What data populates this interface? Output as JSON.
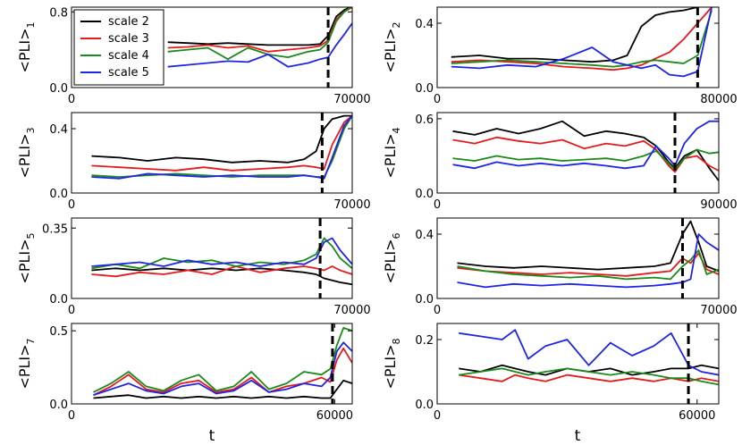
{
  "figure": {
    "xlabel": "t"
  },
  "legend": {
    "location": "top-left of panel 1",
    "entries": [
      {
        "label": "scale 2",
        "color": "#000000"
      },
      {
        "label": "scale 3",
        "color": "#e41a1c"
      },
      {
        "label": "scale 4",
        "color": "#1a8a1a"
      },
      {
        "label": "scale 5",
        "color": "#1f24e6"
      }
    ]
  },
  "chart_data": [
    {
      "type": "line",
      "ylabel": "<PLI>",
      "subscript": "1",
      "xlim": [
        0,
        70000
      ],
      "ylim": [
        0,
        0.85
      ],
      "xticks": [
        0,
        70000
      ],
      "xtick_labels": [
        "0",
        "70000"
      ],
      "yticks": [
        0.0,
        0.8
      ],
      "ytick_labels": [
        "0.0",
        "0.8"
      ],
      "event_x": 64000,
      "x": [
        24000,
        29000,
        34000,
        39000,
        44000,
        49000,
        54000,
        59000,
        62000,
        64000,
        66000,
        68000,
        70000
      ],
      "series": [
        {
          "name": "scale 2",
          "values": [
            0.48,
            0.47,
            0.46,
            0.47,
            0.46,
            0.45,
            0.45,
            0.45,
            0.46,
            0.55,
            0.75,
            0.82,
            0.86
          ]
        },
        {
          "name": "scale 3",
          "values": [
            0.42,
            0.43,
            0.45,
            0.42,
            0.44,
            0.38,
            0.4,
            0.42,
            0.44,
            0.5,
            0.72,
            0.8,
            0.85
          ]
        },
        {
          "name": "scale 4",
          "values": [
            0.38,
            0.4,
            0.42,
            0.3,
            0.42,
            0.35,
            0.32,
            0.38,
            0.4,
            0.48,
            0.7,
            0.8,
            0.86
          ]
        },
        {
          "name": "scale 5",
          "values": [
            0.22,
            0.24,
            0.26,
            0.28,
            0.27,
            0.35,
            0.22,
            0.26,
            0.3,
            0.32,
            0.45,
            0.56,
            0.68
          ]
        }
      ]
    },
    {
      "type": "line",
      "ylabel": "<PLI>",
      "subscript": "2",
      "xlim": [
        0,
        80000
      ],
      "ylim": [
        0,
        0.5
      ],
      "xticks": [
        0,
        80000
      ],
      "xtick_labels": [
        "0",
        "80000"
      ],
      "yticks": [
        0.0,
        0.4
      ],
      "ytick_labels": [
        "0.0",
        "0.4"
      ],
      "event_x": 74000,
      "x": [
        4000,
        12000,
        20000,
        28000,
        36000,
        44000,
        50000,
        54000,
        58000,
        62000,
        66000,
        70000,
        74000,
        78000
      ],
      "series": [
        {
          "name": "scale 2",
          "values": [
            0.19,
            0.2,
            0.18,
            0.18,
            0.17,
            0.16,
            0.17,
            0.2,
            0.38,
            0.45,
            0.47,
            0.48,
            0.5,
            0.55
          ]
        },
        {
          "name": "scale 3",
          "values": [
            0.16,
            0.17,
            0.16,
            0.15,
            0.13,
            0.12,
            0.11,
            0.12,
            0.14,
            0.18,
            0.22,
            0.3,
            0.4,
            0.5
          ]
        },
        {
          "name": "scale 4",
          "values": [
            0.15,
            0.16,
            0.17,
            0.16,
            0.15,
            0.14,
            0.13,
            0.14,
            0.16,
            0.17,
            0.16,
            0.15,
            0.2,
            0.48
          ]
        },
        {
          "name": "scale 5",
          "values": [
            0.13,
            0.12,
            0.14,
            0.13,
            0.18,
            0.25,
            0.16,
            0.14,
            0.12,
            0.14,
            0.08,
            0.07,
            0.1,
            0.5
          ]
        }
      ]
    },
    {
      "type": "line",
      "ylabel": "<PLI>",
      "subscript": "3",
      "xlim": [
        0,
        70000
      ],
      "ylim": [
        0,
        0.5
      ],
      "xticks": [
        0,
        70000
      ],
      "xtick_labels": [
        "0",
        "70000"
      ],
      "yticks": [
        0.0,
        0.4
      ],
      "ytick_labels": [
        "0.0",
        "0.4"
      ],
      "event_x": 62500,
      "x": [
        5000,
        12000,
        19000,
        26000,
        33000,
        40000,
        47000,
        54000,
        58000,
        61000,
        63000,
        65000,
        68000,
        70000
      ],
      "series": [
        {
          "name": "scale 2",
          "values": [
            0.23,
            0.22,
            0.2,
            0.22,
            0.21,
            0.19,
            0.2,
            0.19,
            0.21,
            0.26,
            0.4,
            0.46,
            0.48,
            0.48
          ]
        },
        {
          "name": "scale 3",
          "values": [
            0.17,
            0.16,
            0.15,
            0.14,
            0.16,
            0.14,
            0.15,
            0.16,
            0.17,
            0.16,
            0.15,
            0.3,
            0.44,
            0.48
          ]
        },
        {
          "name": "scale 4",
          "values": [
            0.11,
            0.1,
            0.11,
            0.12,
            0.11,
            0.1,
            0.11,
            0.11,
            0.11,
            0.1,
            0.1,
            0.2,
            0.4,
            0.48
          ]
        },
        {
          "name": "scale 5",
          "values": [
            0.1,
            0.09,
            0.12,
            0.11,
            0.1,
            0.11,
            0.1,
            0.1,
            0.11,
            0.1,
            0.09,
            0.22,
            0.42,
            0.48
          ]
        }
      ]
    },
    {
      "type": "line",
      "ylabel": "<PLI>",
      "subscript": "4",
      "xlim": [
        0,
        90000
      ],
      "ylim": [
        0,
        0.65
      ],
      "xticks": [
        0,
        90000
      ],
      "xtick_labels": [
        "0",
        "90000"
      ],
      "yticks": [
        0.0,
        0.6
      ],
      "ytick_labels": [
        "0.0",
        "0.6"
      ],
      "event_x": 76000,
      "x": [
        5000,
        12000,
        19000,
        26000,
        33000,
        40000,
        47000,
        54000,
        60000,
        66000,
        70000,
        74000,
        76000,
        79000,
        83000,
        87000,
        90000
      ],
      "series": [
        {
          "name": "scale 2",
          "values": [
            0.5,
            0.47,
            0.52,
            0.48,
            0.52,
            0.58,
            0.46,
            0.5,
            0.48,
            0.45,
            0.38,
            0.25,
            0.2,
            0.3,
            0.35,
            0.2,
            0.1
          ]
        },
        {
          "name": "scale 3",
          "values": [
            0.43,
            0.4,
            0.45,
            0.42,
            0.4,
            0.43,
            0.36,
            0.4,
            0.38,
            0.42,
            0.35,
            0.22,
            0.17,
            0.28,
            0.3,
            0.22,
            0.18
          ]
        },
        {
          "name": "scale 4",
          "values": [
            0.28,
            0.26,
            0.3,
            0.27,
            0.28,
            0.26,
            0.27,
            0.28,
            0.26,
            0.3,
            0.34,
            0.24,
            0.19,
            0.28,
            0.35,
            0.32,
            0.33
          ]
        },
        {
          "name": "scale 5",
          "values": [
            0.23,
            0.2,
            0.25,
            0.22,
            0.24,
            0.22,
            0.24,
            0.22,
            0.2,
            0.22,
            0.38,
            0.28,
            0.22,
            0.4,
            0.52,
            0.58,
            0.58
          ]
        }
      ]
    },
    {
      "type": "line",
      "ylabel": "<PLI>",
      "subscript": "5",
      "xlim": [
        0,
        70000
      ],
      "ylim": [
        0,
        0.4
      ],
      "xticks": [
        0,
        70000
      ],
      "xtick_labels": [
        "0",
        "70000"
      ],
      "yticks": [
        0.0,
        0.35
      ],
      "ytick_labels": [
        "0.0",
        "0.35"
      ],
      "event_x": 62000,
      "x": [
        5000,
        11000,
        17000,
        23000,
        29000,
        35000,
        41000,
        47000,
        53000,
        58000,
        61000,
        63000,
        65000,
        67000,
        70000
      ],
      "series": [
        {
          "name": "scale 2",
          "values": [
            0.14,
            0.15,
            0.14,
            0.15,
            0.14,
            0.15,
            0.14,
            0.15,
            0.14,
            0.13,
            0.12,
            0.1,
            0.09,
            0.08,
            0.07
          ]
        },
        {
          "name": "scale 3",
          "values": [
            0.12,
            0.11,
            0.13,
            0.12,
            0.14,
            0.12,
            0.16,
            0.13,
            0.15,
            0.16,
            0.15,
            0.14,
            0.16,
            0.14,
            0.12
          ]
        },
        {
          "name": "scale 4",
          "values": [
            0.15,
            0.17,
            0.15,
            0.2,
            0.18,
            0.19,
            0.16,
            0.18,
            0.17,
            0.19,
            0.22,
            0.3,
            0.26,
            0.2,
            0.15
          ]
        },
        {
          "name": "scale 5",
          "values": [
            0.16,
            0.17,
            0.18,
            0.16,
            0.19,
            0.17,
            0.18,
            0.16,
            0.18,
            0.17,
            0.2,
            0.28,
            0.3,
            0.24,
            0.17
          ]
        }
      ]
    },
    {
      "type": "line",
      "ylabel": "<PLI>",
      "subscript": "6",
      "xlim": [
        0,
        70000
      ],
      "ylim": [
        0,
        0.5
      ],
      "xticks": [
        0,
        70000
      ],
      "xtick_labels": [
        "0",
        "70000"
      ],
      "yticks": [
        0.0,
        0.4
      ],
      "ytick_labels": [
        "0.0",
        "0.4"
      ],
      "event_x": 61000,
      "x": [
        5000,
        12000,
        19000,
        26000,
        33000,
        40000,
        47000,
        54000,
        58000,
        61000,
        63000,
        65000,
        67000,
        70000
      ],
      "series": [
        {
          "name": "scale 2",
          "values": [
            0.22,
            0.2,
            0.19,
            0.2,
            0.19,
            0.18,
            0.19,
            0.2,
            0.22,
            0.4,
            0.48,
            0.35,
            0.2,
            0.17
          ]
        },
        {
          "name": "scale 3",
          "values": [
            0.19,
            0.17,
            0.16,
            0.15,
            0.16,
            0.15,
            0.14,
            0.16,
            0.17,
            0.25,
            0.22,
            0.28,
            0.18,
            0.15
          ]
        },
        {
          "name": "scale 4",
          "values": [
            0.2,
            0.17,
            0.15,
            0.14,
            0.13,
            0.14,
            0.12,
            0.13,
            0.12,
            0.2,
            0.24,
            0.3,
            0.15,
            0.18
          ]
        },
        {
          "name": "scale 5",
          "values": [
            0.1,
            0.07,
            0.09,
            0.08,
            0.09,
            0.08,
            0.07,
            0.08,
            0.09,
            0.1,
            0.12,
            0.4,
            0.35,
            0.3
          ]
        }
      ]
    },
    {
      "type": "line",
      "ylabel": "<PLI>",
      "subscript": "7",
      "xlim": [
        0,
        64000
      ],
      "ylim": [
        0,
        0.55
      ],
      "xticks": [
        0,
        60000
      ],
      "xtick_labels": [
        "0",
        "60000"
      ],
      "yticks": [
        0.0,
        0.5
      ],
      "ytick_labels": [
        "0.0",
        "0.5"
      ],
      "event_x": 59500,
      "x": [
        5000,
        9000,
        13000,
        17000,
        21000,
        25000,
        29000,
        33000,
        37000,
        41000,
        45000,
        49000,
        53000,
        57000,
        59000,
        60500,
        62000,
        64000
      ],
      "series": [
        {
          "name": "scale 2",
          "values": [
            0.04,
            0.05,
            0.06,
            0.04,
            0.05,
            0.04,
            0.05,
            0.04,
            0.05,
            0.04,
            0.05,
            0.04,
            0.05,
            0.04,
            0.04,
            0.1,
            0.16,
            0.14
          ]
        },
        {
          "name": "scale 3",
          "values": [
            0.06,
            0.12,
            0.2,
            0.1,
            0.08,
            0.14,
            0.16,
            0.08,
            0.1,
            0.18,
            0.08,
            0.12,
            0.14,
            0.18,
            0.15,
            0.3,
            0.38,
            0.28
          ]
        },
        {
          "name": "scale 4",
          "values": [
            0.08,
            0.14,
            0.22,
            0.12,
            0.09,
            0.16,
            0.2,
            0.09,
            0.12,
            0.22,
            0.1,
            0.14,
            0.22,
            0.2,
            0.24,
            0.4,
            0.52,
            0.5
          ]
        },
        {
          "name": "scale 5",
          "values": [
            0.06,
            0.1,
            0.14,
            0.09,
            0.07,
            0.12,
            0.14,
            0.07,
            0.09,
            0.16,
            0.08,
            0.1,
            0.14,
            0.12,
            0.18,
            0.36,
            0.42,
            0.36
          ]
        }
      ]
    },
    {
      "type": "line",
      "ylabel": "<PLI>",
      "subscript": "8",
      "xlim": [
        0,
        65000
      ],
      "ylim": [
        0,
        0.25
      ],
      "xticks": [
        0,
        60000
      ],
      "xtick_labels": [
        "0",
        "60000"
      ],
      "yticks": [
        0.0,
        0.2
      ],
      "ytick_labels": [
        "0.0",
        "0.2"
      ],
      "event_x": 58000,
      "x": [
        5000,
        10000,
        15000,
        18000,
        21000,
        25000,
        30000,
        35000,
        40000,
        45000,
        50000,
        54000,
        58000,
        61000,
        65000
      ],
      "series": [
        {
          "name": "scale 2",
          "values": [
            0.11,
            0.1,
            0.12,
            0.11,
            0.1,
            0.09,
            0.11,
            0.1,
            0.11,
            0.09,
            0.1,
            0.11,
            0.11,
            0.12,
            0.11
          ]
        },
        {
          "name": "scale 3",
          "values": [
            0.09,
            0.08,
            0.07,
            0.09,
            0.08,
            0.07,
            0.09,
            0.08,
            0.07,
            0.08,
            0.07,
            0.08,
            0.07,
            0.08,
            0.07
          ]
        },
        {
          "name": "scale 4",
          "values": [
            0.09,
            0.1,
            0.11,
            0.1,
            0.09,
            0.1,
            0.11,
            0.1,
            0.09,
            0.1,
            0.09,
            0.08,
            0.08,
            0.07,
            0.06
          ]
        },
        {
          "name": "scale 5",
          "values": [
            0.22,
            0.21,
            0.2,
            0.23,
            0.14,
            0.18,
            0.2,
            0.12,
            0.19,
            0.15,
            0.18,
            0.22,
            0.12,
            0.1,
            0.09
          ]
        }
      ]
    }
  ]
}
